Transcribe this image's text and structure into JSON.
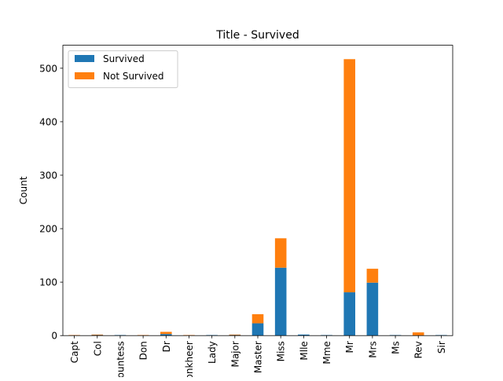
{
  "chart_data": {
    "type": "bar",
    "stacked": true,
    "title": "Title - Survived",
    "xlabel": "",
    "ylabel": "Count",
    "categories": [
      "Capt",
      "Col",
      "Countess",
      "Don",
      "Dr",
      "Jonkheer",
      "Lady",
      "Major",
      "Master",
      "Miss",
      "Mlle",
      "Mme",
      "Mr",
      "Mrs",
      "Ms",
      "Rev",
      "Sir"
    ],
    "series": [
      {
        "name": "Survived",
        "color": "#1f77b4",
        "values": [
          0,
          1,
          1,
          0,
          3,
          0,
          1,
          1,
          23,
          127,
          2,
          1,
          81,
          99,
          1,
          0,
          1
        ]
      },
      {
        "name": "Not Survived",
        "color": "#ff7f0e",
        "values": [
          1,
          1,
          0,
          1,
          4,
          1,
          0,
          1,
          17,
          55,
          0,
          0,
          436,
          26,
          0,
          6,
          0
        ]
      }
    ],
    "ylim": [
      0,
      543
    ],
    "yticks": [
      0,
      100,
      200,
      300,
      400,
      500
    ],
    "legend_position": "top-left",
    "grid": false
  }
}
